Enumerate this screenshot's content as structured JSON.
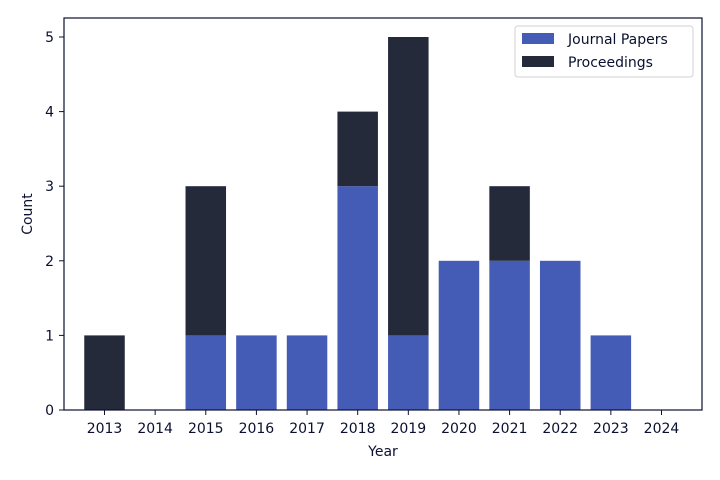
{
  "chart_data": {
    "type": "bar",
    "stacked": true,
    "categories": [
      "2013",
      "2014",
      "2015",
      "2016",
      "2017",
      "2018",
      "2019",
      "2020",
      "2021",
      "2022",
      "2023",
      "2024"
    ],
    "series": [
      {
        "name": "Journal Papers",
        "values": [
          0,
          0,
          1,
          1,
          1,
          3,
          1,
          2,
          2,
          2,
          1,
          0
        ],
        "color": "#445cb5"
      },
      {
        "name": "Proceedings",
        "values": [
          1,
          0,
          2,
          0,
          0,
          1,
          4,
          0,
          1,
          0,
          0,
          0
        ],
        "color": "#252a3b"
      }
    ],
    "xlabel": "Year",
    "ylabel": "Count",
    "ylim": [
      0,
      5
    ],
    "yticks": [
      0,
      1,
      2,
      3,
      4,
      5
    ],
    "grid": false,
    "legend_position": "top-right"
  }
}
